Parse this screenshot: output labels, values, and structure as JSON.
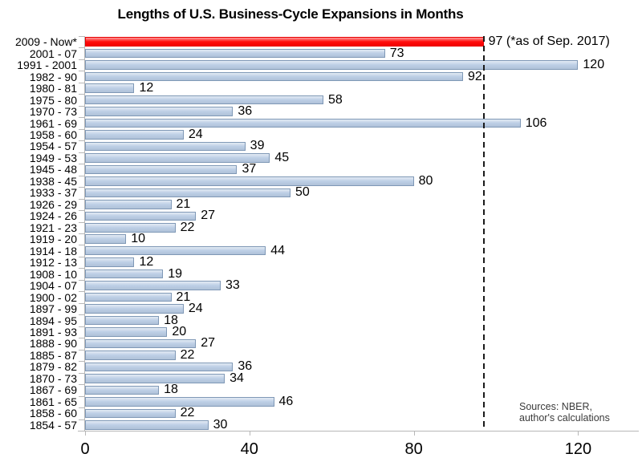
{
  "title": "Lengths of U.S. Business-Cycle Expansions in Months",
  "source_note": {
    "line1": "Sources: NBER,",
    "line2": "author's calculations"
  },
  "chart_data": {
    "type": "bar",
    "orientation": "horizontal",
    "title": "Lengths of U.S. Business-Cycle Expansions in Months",
    "xlabel": "",
    "ylabel": "",
    "categories": [
      "2009 - Now*",
      "2001 - 07",
      "1991 - 2001",
      "1982 - 90",
      "1980 - 81",
      "1975 - 80",
      "1970 - 73",
      "1961 - 69",
      "1958 - 60",
      "1954 - 57",
      "1949 - 53",
      "1945 - 48",
      "1938 - 45",
      "1933 - 37",
      "1926 - 29",
      "1924 - 26",
      "1921 - 23",
      "1919 - 20",
      "1914 - 18",
      "1912 - 13",
      "1908 - 10",
      "1904 - 07",
      "1900 - 02",
      "1897 - 99",
      "1894 - 95",
      "1891 - 93",
      "1888 - 90",
      "1885 - 87",
      "1879 - 82",
      "1870 - 73",
      "1867 - 69",
      "1861 - 65",
      "1858 - 60",
      "1854 - 57"
    ],
    "values": [
      97,
      73,
      120,
      92,
      12,
      58,
      36,
      106,
      24,
      39,
      45,
      37,
      80,
      50,
      21,
      27,
      22,
      10,
      44,
      12,
      19,
      33,
      21,
      24,
      18,
      20,
      27,
      22,
      36,
      34,
      18,
      46,
      22,
      30
    ],
    "value_labels": [
      "97 (*as of Sep. 2017)",
      "73",
      "120",
      "92",
      "12",
      "58",
      "36",
      "106",
      "24",
      "39",
      "45",
      "37",
      "80",
      "50",
      "21",
      "27",
      "22",
      "10",
      "44",
      "12",
      "19",
      "33",
      "21",
      "24",
      "18",
      "20",
      "27",
      "22",
      "36",
      "34",
      "18",
      "46",
      "22",
      "30"
    ],
    "highlight_index": 0,
    "annotation": "(*as of Sep. 2017)",
    "x_ticks": [
      0,
      40,
      80,
      120
    ],
    "xlim": [
      0,
      134.5
    ],
    "grid": false,
    "legend": "none",
    "reference_line": {
      "value": 97,
      "style": "dashed",
      "color": "#1a1a1a"
    },
    "colors": {
      "bar_fill": "#b9cce4",
      "bar_border": "#7f98b6",
      "highlight_fill": "#ff0000",
      "highlight_border": "#e80000",
      "axis": "#b7b7b7"
    }
  }
}
